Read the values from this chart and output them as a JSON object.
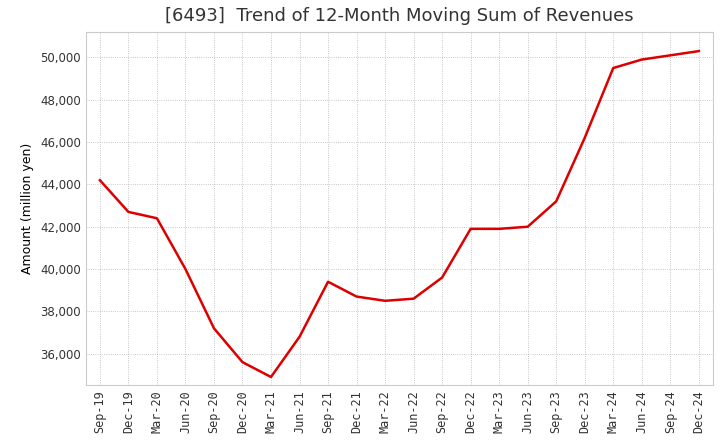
{
  "title": "[6493]  Trend of 12-Month Moving Sum of Revenues",
  "ylabel": "Amount (million yen)",
  "line_color": "#dd0000",
  "background_color": "#ffffff",
  "plot_bg_color": "#ffffff",
  "grid_color": "#999999",
  "x_labels": [
    "Sep-19",
    "Dec-19",
    "Mar-20",
    "Jun-20",
    "Sep-20",
    "Dec-20",
    "Mar-21",
    "Jun-21",
    "Sep-21",
    "Dec-21",
    "Mar-22",
    "Jun-22",
    "Sep-22",
    "Dec-22",
    "Mar-23",
    "Jun-23",
    "Sep-23",
    "Dec-23",
    "Mar-24",
    "Jun-24",
    "Sep-24",
    "Dec-24"
  ],
  "y_values": [
    44200,
    42700,
    42400,
    40000,
    37200,
    35600,
    34900,
    36800,
    39400,
    38700,
    38500,
    38600,
    39600,
    41900,
    41900,
    42000,
    43200,
    46200,
    49500,
    49900,
    50100,
    50300
  ],
  "ylim": [
    34500,
    51200
  ],
  "yticks": [
    36000,
    38000,
    40000,
    42000,
    44000,
    46000,
    48000,
    50000
  ],
  "linewidth": 1.8,
  "title_fontsize": 13,
  "axis_fontsize": 9,
  "tick_fontsize": 8.5
}
